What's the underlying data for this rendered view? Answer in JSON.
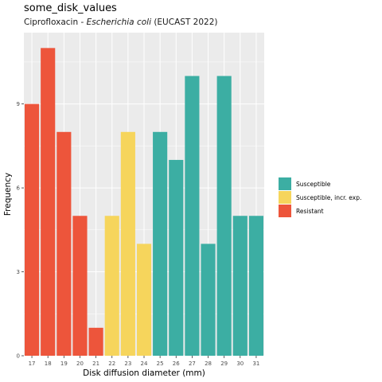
{
  "chart_data": {
    "type": "bar",
    "title": "some_disk_values",
    "subtitle": {
      "prefix": "Ciprofloxacin - ",
      "italic": "Escherichia coli",
      "suffix": " (EUCAST 2022)"
    },
    "xlabel": "Disk diffusion diameter (mm)",
    "ylabel": "Frequency",
    "categories": [
      "17",
      "18",
      "19",
      "20",
      "21",
      "22",
      "23",
      "24",
      "25",
      "26",
      "27",
      "28",
      "29",
      "30",
      "31"
    ],
    "values": [
      9,
      11,
      8,
      5,
      1,
      5,
      8,
      4,
      8,
      7,
      10,
      4,
      10,
      5,
      5
    ],
    "bar_groups": [
      "Resistant",
      "Resistant",
      "Resistant",
      "Resistant",
      "Resistant",
      "Susceptible, incr. exp.",
      "Susceptible, incr. exp.",
      "Susceptible, incr. exp.",
      "Susceptible",
      "Susceptible",
      "Susceptible",
      "Susceptible",
      "Susceptible",
      "Susceptible",
      "Susceptible"
    ],
    "ylim": [
      0,
      11.55
    ],
    "yticks": [
      0,
      3,
      6,
      9
    ],
    "grid": true,
    "legend": {
      "placement": "right",
      "entries": [
        {
          "name": "Susceptible",
          "color": "#3CAEA3"
        },
        {
          "name": "Susceptible, incr. exp.",
          "color": "#F6D55C"
        },
        {
          "name": "Resistant",
          "color": "#ED553B"
        }
      ]
    },
    "colors": {
      "panel_background": "#EBEBEB",
      "grid": "#FFFFFF"
    }
  }
}
